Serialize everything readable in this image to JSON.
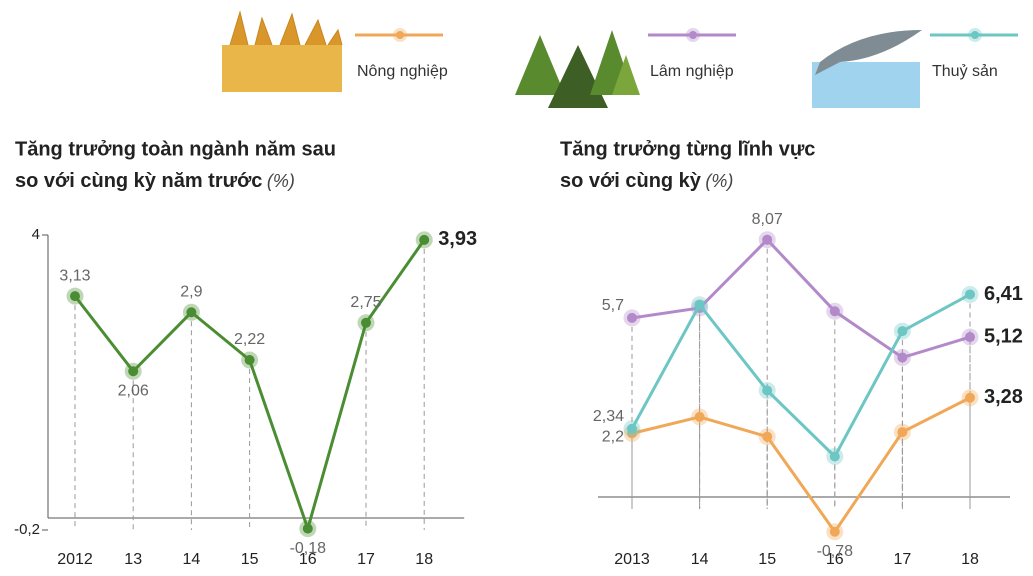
{
  "chart_data": [
    {
      "type": "line",
      "title": "Tăng trưởng toàn ngành năm sau",
      "subtitle": "so với cùng kỳ năm trước",
      "unit": "(%)",
      "categories": [
        "2012",
        "13",
        "14",
        "15",
        "16",
        "17",
        "18"
      ],
      "values": [
        3.13,
        2.06,
        2.9,
        2.22,
        -0.18,
        2.75,
        3.93
      ],
      "value_labels": [
        "3,13",
        "2,06",
        "2,9",
        "2,22",
        "-0,18",
        "2,75",
        "3,93"
      ],
      "color": "#4a8d32",
      "ylim": [
        -0.2,
        4
      ],
      "yticks": [
        4,
        {
          "value": -0.2,
          "label": "-0,2"
        }
      ]
    },
    {
      "type": "line",
      "title": "Tăng trưởng từng lĩnh vực",
      "subtitle": "so với cùng kỳ",
      "unit": "(%)",
      "categories": [
        "2013",
        "14",
        "15",
        "16",
        "17",
        "18"
      ],
      "series": [
        {
          "name": "Nông nghiệp",
          "color": "#f0a858",
          "values": [
            2.2,
            2.7,
            2.1,
            -0.78,
            2.24,
            3.28
          ],
          "value_labels": [
            "2,2",
            null,
            null,
            "-0,78",
            null,
            "3,28"
          ]
        },
        {
          "name": "Lâm nghiệp",
          "color": "#b38ac9",
          "values": [
            5.7,
            6.0,
            8.07,
            5.9,
            4.5,
            5.12
          ],
          "value_labels": [
            "5,7",
            null,
            "8,07",
            null,
            null,
            "5,12"
          ]
        },
        {
          "name": "Thuỷ sản",
          "color": "#6cc6c4",
          "values": [
            2.34,
            6.1,
            3.5,
            1.5,
            5.3,
            6.41
          ],
          "value_labels": [
            "2,34",
            null,
            null,
            null,
            null,
            "6,41"
          ]
        }
      ],
      "ylim": [
        -1,
        8.5
      ]
    }
  ]
}
